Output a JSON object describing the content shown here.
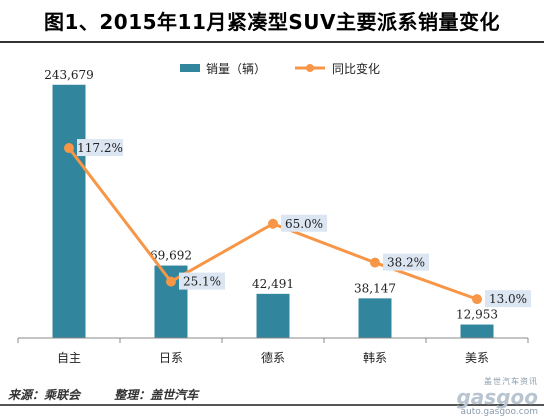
{
  "title": "图1、2015年11月紧凑型SUV主要派系销量变化",
  "footer": {
    "source": "来源：乘联会",
    "compiled": "整理：盖世汽车"
  },
  "watermark": {
    "top": "盖世汽车资讯",
    "logo": "gasgoo",
    "url": "auto.gasgoo.com"
  },
  "chart_data": {
    "type": "bar",
    "categories": [
      "自主",
      "日系",
      "德系",
      "韩系",
      "美系"
    ],
    "series": [
      {
        "name": "销量（辆）",
        "type": "bar",
        "values": [
          243679,
          69692,
          42491,
          38147,
          12953
        ],
        "labels": [
          "243,679",
          "69,692",
          "42,491",
          "38,147",
          "12,953"
        ],
        "color": "#31859c"
      },
      {
        "name": "同比变化",
        "type": "line",
        "values": [
          117.2,
          25.1,
          65.0,
          38.2,
          13.0
        ],
        "labels": [
          "117.2%",
          "25.1%",
          "65.0%",
          "38.2%",
          "13.0%"
        ],
        "color": "#f79646"
      }
    ],
    "legend_position": "top-right",
    "grid": false
  }
}
